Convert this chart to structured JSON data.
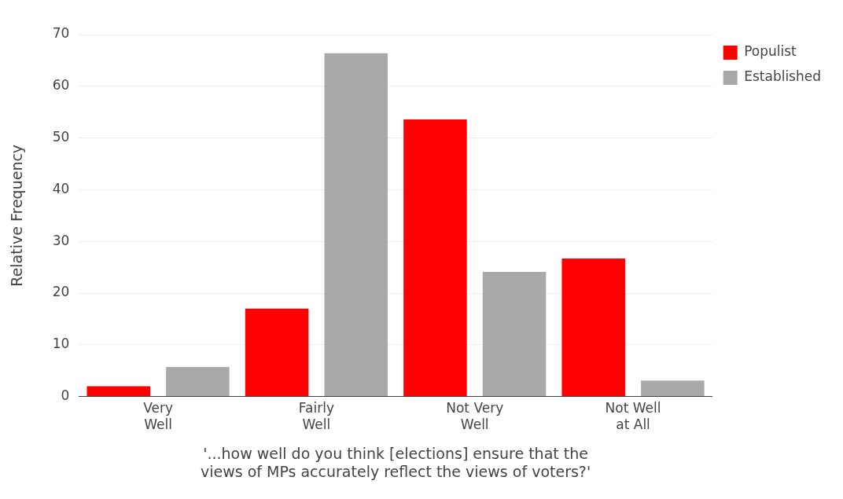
{
  "chart_data": {
    "type": "bar",
    "xlabel": "'...how well do you think [elections] ensure that the views of MPs accurately reflect the views of voters?'",
    "ylabel": "Relative Frequency",
    "categories": [
      "Very Well",
      "Fairly Well",
      "Not Very Well",
      "Not Well at All"
    ],
    "series": [
      {
        "name": "Populist",
        "color": "#ff0000",
        "values": [
          2.0,
          17.0,
          53.6,
          26.7
        ]
      },
      {
        "name": "Established",
        "color": "#a9a9a9",
        "values": [
          5.7,
          66.4,
          24.1,
          3.1
        ]
      }
    ],
    "ylim": [
      0,
      70
    ],
    "yticks": [
      0,
      10,
      20,
      30,
      40,
      50,
      60,
      70
    ],
    "grid": "y",
    "legend": "top right"
  }
}
